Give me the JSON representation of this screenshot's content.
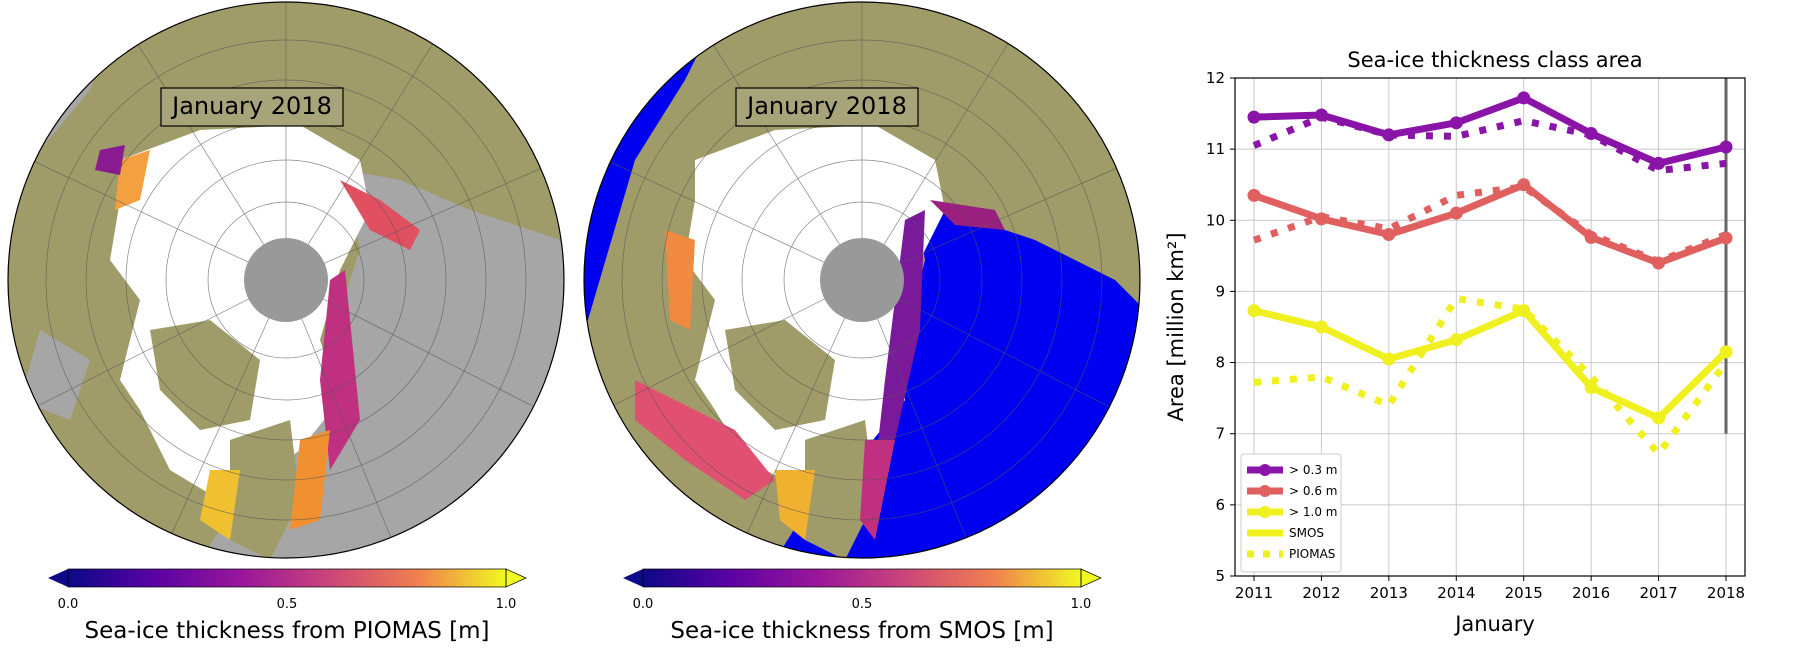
{
  "maps": [
    {
      "date_label": "January  2018",
      "colorbar": {
        "min_label": "0.0",
        "mid_label": "0.5",
        "max_label": "1.0",
        "title": "Sea-ice thickness from PIOMAS [m]"
      },
      "colors": {
        "land": "#a09c6a",
        "ocean": "#a6a6a6",
        "pole": "#999999",
        "ice": "#ffffff"
      }
    },
    {
      "date_label": "January  2018",
      "colorbar": {
        "min_label": "0.0",
        "mid_label": "0.5",
        "max_label": "1.0",
        "title": "Sea-ice thickness from SMOS [m]"
      },
      "colors": {
        "land": "#a09c6a",
        "ocean": "#0000f0",
        "pole": "#999999",
        "ice": "#ffffff"
      }
    }
  ],
  "chart_data": {
    "type": "line",
    "title": "Sea-ice thickness class area",
    "xlabel": "January",
    "ylabel": "Area [million km²]",
    "x": [
      2011,
      2012,
      2013,
      2014,
      2015,
      2016,
      2017,
      2018
    ],
    "ylim": [
      5,
      12
    ],
    "yticks": [
      5,
      6,
      7,
      8,
      9,
      10,
      11,
      12
    ],
    "grid": true,
    "legend_position": "lower-left",
    "classes": [
      {
        "name": "> 0.3 m",
        "color": "#8a14a8",
        "smos": [
          11.45,
          11.48,
          11.2,
          11.37,
          11.72,
          11.22,
          10.8,
          11.03
        ],
        "piomas": [
          11.05,
          11.45,
          11.2,
          11.18,
          11.4,
          11.2,
          10.7,
          10.8
        ]
      },
      {
        "name": "> 0.6 m",
        "color": "#e06060",
        "smos": [
          10.35,
          10.02,
          9.8,
          10.1,
          10.5,
          9.76,
          9.4,
          9.75
        ],
        "piomas": [
          9.72,
          10.05,
          9.88,
          10.35,
          10.47,
          9.8,
          9.42,
          9.8
        ]
      },
      {
        "name": "> 1.0 m",
        "color": "#f0f020",
        "smos": [
          8.73,
          8.5,
          8.05,
          8.32,
          8.73,
          7.65,
          7.22,
          8.15
        ],
        "piomas": [
          7.72,
          7.8,
          7.4,
          8.9,
          8.75,
          7.8,
          6.72,
          8.0
        ]
      }
    ],
    "legend": {
      "smos_label": "SMOS",
      "piomas_label": "PIOMAS"
    },
    "marker_x": 2018,
    "marker_range": [
      7.0,
      12.0
    ]
  }
}
